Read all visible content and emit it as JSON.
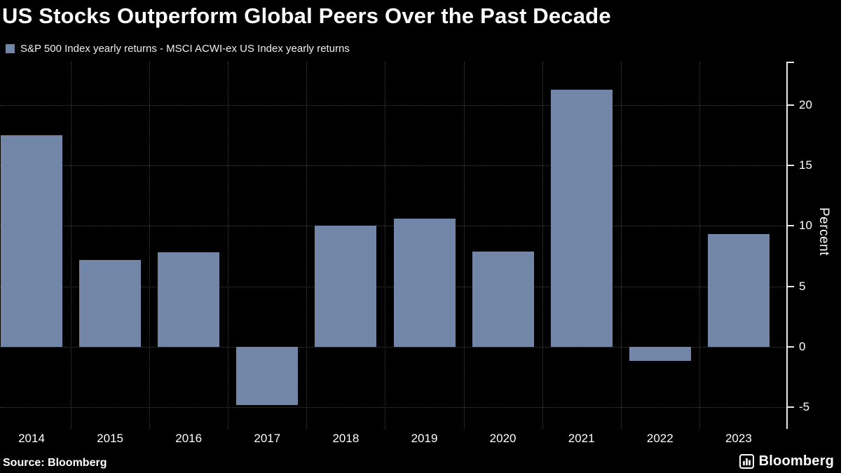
{
  "header": {
    "legend_label": "S&P 500 Index yearly returns - MSCI ACWI-ex US Index yearly returns"
  },
  "footer": {
    "source": "Source: Bloomberg",
    "brand": "Bloomberg"
  },
  "chart_data": {
    "type": "bar",
    "title": "US Stocks Outperform Global Peers Over the Past Decade",
    "categories": [
      "2014",
      "2015",
      "2016",
      "2017",
      "2018",
      "2019",
      "2020",
      "2021",
      "2022",
      "2023"
    ],
    "values": [
      17.5,
      7.2,
      7.8,
      -4.8,
      10.0,
      10.6,
      7.9,
      21.3,
      -1.2,
      9.3
    ],
    "xlabel": "",
    "ylabel": "Percent",
    "ylim": [
      -6.8,
      23.6
    ],
    "yticks": [
      -5,
      0,
      5,
      10,
      15,
      20
    ],
    "legend": [
      "S&P 500 Index yearly returns - MSCI ACWI-ex US Index yearly returns"
    ],
    "legend_position": "top-left",
    "grid": "dotted",
    "bar_color": "#7287a8",
    "background_color": "#000000",
    "text_color": "#ffffff"
  }
}
